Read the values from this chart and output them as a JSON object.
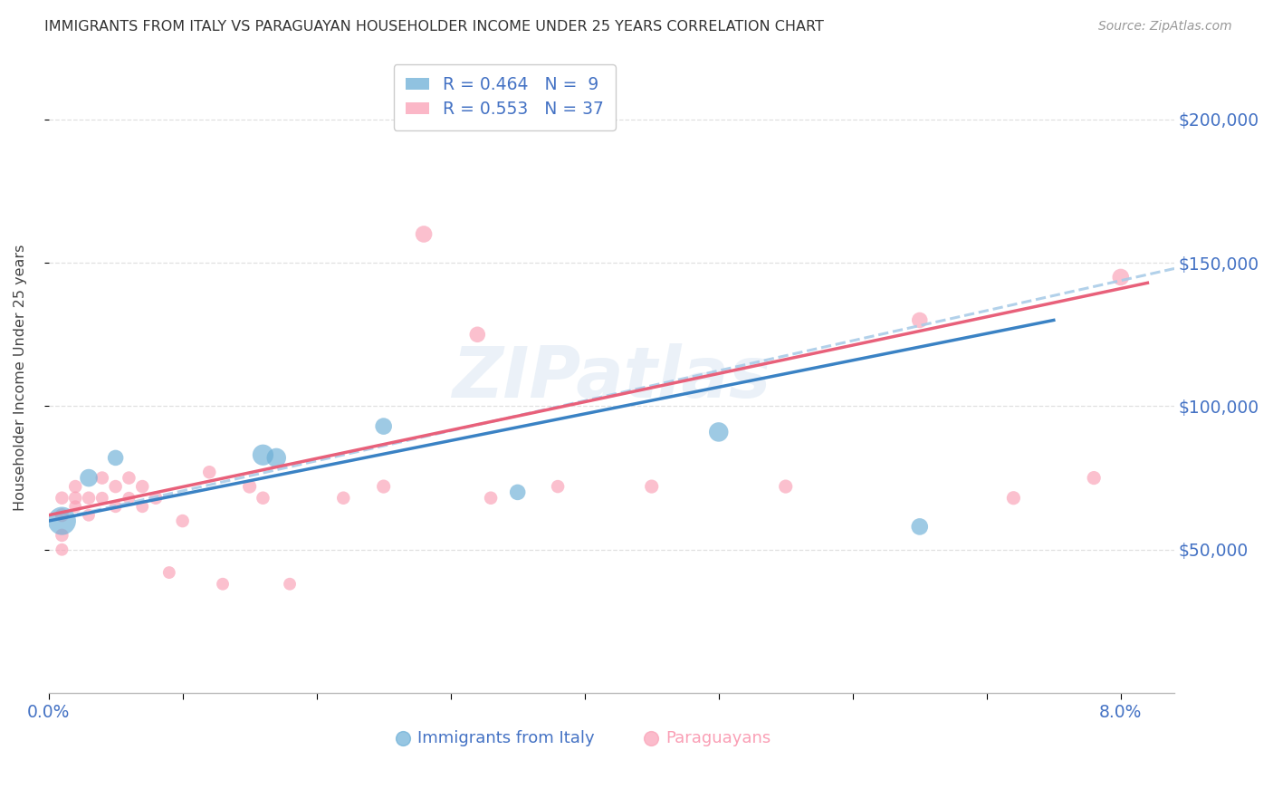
{
  "title": "IMMIGRANTS FROM ITALY VS PARAGUAYAN HOUSEHOLDER INCOME UNDER 25 YEARS CORRELATION CHART",
  "source": "Source: ZipAtlas.com",
  "ylabel": "Householder Income Under 25 years",
  "r_italy": 0.464,
  "n_italy": 9,
  "r_paraguay": 0.553,
  "n_paraguay": 37,
  "italy_color": "#6baed6",
  "paraguay_color": "#fa9fb5",
  "italy_line_color": "#3a82c4",
  "paraguay_line_color": "#e8607a",
  "italy_dashed_color": "#aacce8",
  "bg_color": "#ffffff",
  "grid_color": "#dddddd",
  "axis_label_color": "#4472c4",
  "title_color": "#333333",
  "source_color": "#999999",
  "xlim": [
    0.0,
    0.084
  ],
  "ylim": [
    0,
    220000
  ],
  "yticks": [
    50000,
    100000,
    150000,
    200000
  ],
  "ytick_labels": [
    "$50,000",
    "$100,000",
    "$150,000",
    "$200,000"
  ],
  "xticks": [
    0.0,
    0.01,
    0.02,
    0.03,
    0.04,
    0.05,
    0.06,
    0.07,
    0.08
  ],
  "italy_x": [
    0.001,
    0.003,
    0.005,
    0.016,
    0.017,
    0.025,
    0.035,
    0.05,
    0.065
  ],
  "italy_y": [
    60000,
    75000,
    82000,
    83000,
    82000,
    93000,
    70000,
    91000,
    58000
  ],
  "italy_sizes": [
    500,
    200,
    160,
    280,
    240,
    180,
    160,
    240,
    180
  ],
  "paraguay_x": [
    0.001,
    0.001,
    0.001,
    0.001,
    0.002,
    0.002,
    0.002,
    0.003,
    0.003,
    0.004,
    0.004,
    0.005,
    0.005,
    0.006,
    0.006,
    0.007,
    0.007,
    0.008,
    0.009,
    0.01,
    0.012,
    0.013,
    0.015,
    0.016,
    0.018,
    0.022,
    0.025,
    0.028,
    0.032,
    0.033,
    0.038,
    0.045,
    0.055,
    0.065,
    0.072,
    0.078,
    0.08
  ],
  "paraguay_y": [
    62000,
    68000,
    55000,
    50000,
    72000,
    68000,
    65000,
    68000,
    62000,
    75000,
    68000,
    72000,
    65000,
    75000,
    68000,
    72000,
    65000,
    68000,
    42000,
    60000,
    77000,
    38000,
    72000,
    68000,
    38000,
    68000,
    72000,
    160000,
    125000,
    68000,
    72000,
    72000,
    72000,
    130000,
    68000,
    75000,
    145000
  ],
  "paraguay_sizes": [
    120,
    110,
    110,
    100,
    110,
    110,
    100,
    110,
    100,
    110,
    100,
    110,
    100,
    110,
    100,
    110,
    100,
    110,
    100,
    110,
    110,
    100,
    120,
    110,
    100,
    110,
    120,
    180,
    160,
    110,
    110,
    120,
    120,
    160,
    120,
    120,
    180
  ],
  "watermark": "ZIPatlas",
  "legend_italy_label": "R = 0.464   N =  9",
  "legend_para_label": "R = 0.553   N = 37"
}
